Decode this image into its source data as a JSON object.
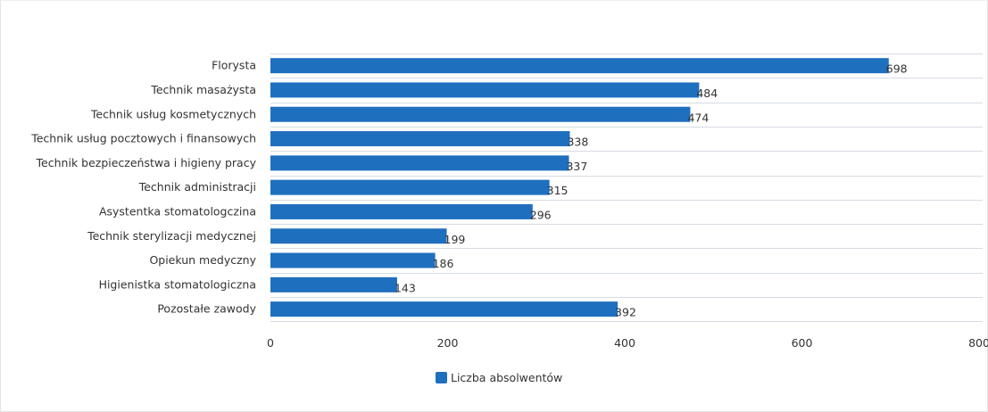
{
  "chart_data": {
    "type": "bar",
    "orientation": "horizontal",
    "categories": [
      "Florysta",
      "Technik masażysta",
      "Technik usług kosmetycznych",
      "Technik usług pocztowych i finansowych",
      "Technik bezpieczeństwa i higieny pracy",
      "Technik administracji",
      "Asystentka stomatologczina",
      "Technik sterylizacji medycznej",
      "Opiekun medyczny",
      "Higienistka stomatologiczna",
      "Pozostałe zawody"
    ],
    "series": [
      {
        "name": "Liczba absolwentów",
        "color": "#1f6fbf",
        "values": [
          698,
          484,
          474,
          338,
          337,
          315,
          296,
          199,
          186,
          143,
          392
        ]
      }
    ],
    "xlim": [
      0,
      800
    ],
    "xticks": [
      "0",
      "200",
      "400",
      "600",
      "800"
    ],
    "grid": true,
    "legend": "bottom-center",
    "title": "",
    "xlabel": "",
    "ylabel": ""
  }
}
